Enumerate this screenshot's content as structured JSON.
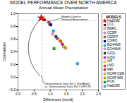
{
  "chart_data": {
    "type": "scatter",
    "title": "MODEL PERFORMANCE OVER NORTH AMERICA",
    "subtitle": "Annual Mean Precipitation",
    "xlabel": "Differences (mm/d)",
    "ylabel": "Correlations",
    "xlim": [
      0.0,
      2.5
    ],
    "ylim": [
      -0.2,
      1.0
    ],
    "xticks": [
      {
        "value": 0,
        "label": "0.0"
      },
      0.5,
      {
        "value": 1,
        "label": "1.0"
      },
      1.5,
      {
        "value": 2,
        "label": "2.0"
      },
      2.5
    ],
    "yticks": [
      -0.2,
      {
        "value": 0,
        "label": "0.0"
      },
      0.2,
      0.4,
      0.6,
      0.8,
      {
        "value": 1,
        "label": "1.0"
      }
    ],
    "grid": false,
    "legend": "right",
    "legend_title": "MODELS",
    "series": [
      {
        "name": "HadCM2",
        "color": "#ff0000",
        "marker": "star",
        "x": [
          0.72
        ],
        "values": [
          0.935
        ]
      },
      {
        "name": "CCC",
        "color": "#bb0000",
        "marker": "square",
        "x": [
          0.82
        ],
        "values": [
          0.905
        ]
      },
      {
        "name": "BMRC",
        "color": "#ffaacc",
        "marker": "circle",
        "x": [
          0.93
        ],
        "values": [
          0.875
        ]
      },
      {
        "name": "CCSR",
        "color": "#cc99ff",
        "marker": "circle",
        "x": [
          0.97
        ],
        "values": [
          0.855
        ]
      },
      {
        "name": "CERFP",
        "color": "#ff6600",
        "marker": "square",
        "x": [
          0.98
        ],
        "values": [
          0.84
        ]
      },
      {
        "name": "CSIRO",
        "color": "#0000cc",
        "marker": "square",
        "x": [
          1.02
        ],
        "values": [
          0.825
        ]
      },
      {
        "name": "ECHAM3",
        "color": "#00ccff",
        "marker": "circle",
        "x": [
          1.1
        ],
        "values": [
          0.73
        ]
      },
      {
        "name": "ECHAM4",
        "color": "#ff99ff",
        "marker": "circle",
        "x": [
          1.08
        ],
        "values": [
          0.68
        ]
      },
      {
        "name": "GFDL",
        "color": "#006600",
        "marker": "square",
        "x": [
          1.18
        ],
        "values": [
          0.64
        ]
      },
      {
        "name": "GISS",
        "color": "#ff00ff",
        "marker": "circle",
        "x": [
          1.22
        ],
        "values": [
          0.61
        ]
      },
      {
        "name": "IAP",
        "color": "#ffff00",
        "marker": "circle",
        "x": [
          1.28
        ],
        "values": [
          0.59
        ]
      },
      {
        "name": "LMD",
        "color": "#ff6600",
        "marker": "square",
        "x": [
          1.33
        ],
        "values": [
          0.565
        ]
      },
      {
        "name": "MRI",
        "color": "#ff0099",
        "marker": "circle",
        "x": [
          1.38
        ],
        "values": [
          0.52
        ]
      },
      {
        "name": "NCAR CSM",
        "color": "#99ff00",
        "marker": "circle",
        "x": [
          1.42
        ],
        "values": [
          0.48
        ]
      },
      {
        "name": "NCAR WM",
        "color": "#ff9900",
        "marker": "circle",
        "x": [
          1.48
        ],
        "values": [
          0.46
        ]
      },
      {
        "name": "PCM",
        "color": "#00cc00",
        "marker": "square",
        "x": [
          1.12
        ],
        "values": [
          0.45
        ]
      },
      {
        "name": "HadCM3",
        "color": "#00ccff",
        "marker": "circle",
        "x": [
          1.85
        ],
        "values": [
          0.215
        ]
      }
    ],
    "hlines": [
      0.9
    ],
    "vlines": [
      0.75
    ],
    "annotations": [
      {
        "text": "Models Used in\nNational Assessment",
        "xy": [
          0.93,
          0.87
        ],
        "xytext": [
          1.35,
          0.935
        ]
      },
      {
        "text": "Observational Data Set 1 (Xie/Arkin)\nvs. Observational Data Set 2 (GPCP)",
        "xy": [
          0.73,
          0.02
        ],
        "xytext": [
          0.82,
          -0.12
        ]
      }
    ],
    "arrows": [
      {
        "from": [
          0.68,
          0.02
        ],
        "to": [
          0.68,
          0.91
        ]
      }
    ]
  }
}
